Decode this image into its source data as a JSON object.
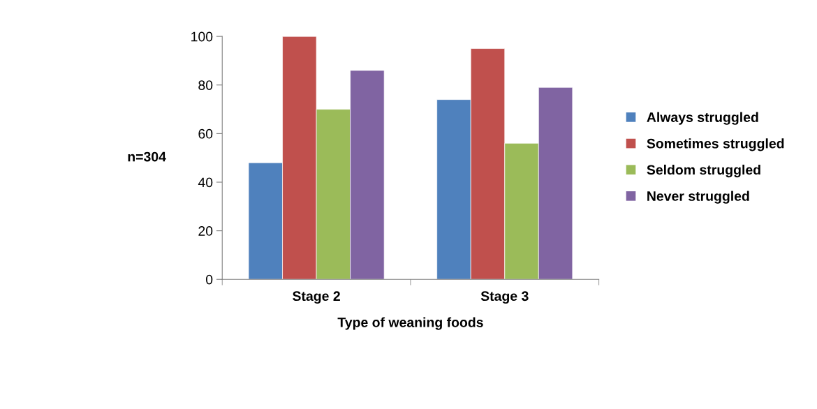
{
  "chart_data": {
    "type": "bar",
    "xlabel": "Type of weaning foods",
    "ylabel": "n=304",
    "categories": [
      "Stage 2",
      "Stage 3"
    ],
    "series": [
      {
        "name": "Always struggled",
        "color": "#4f81bd",
        "values": [
          48,
          74
        ]
      },
      {
        "name": "Sometimes struggled",
        "color": "#c0504d",
        "values": [
          100,
          95
        ]
      },
      {
        "name": "Seldom struggled",
        "color": "#9bbb59",
        "values": [
          70,
          56
        ]
      },
      {
        "name": "Never struggled",
        "color": "#8064a2",
        "values": [
          86,
          79
        ]
      }
    ],
    "ylim": [
      0,
      100
    ],
    "yticks": [
      0,
      20,
      40,
      60,
      80,
      100
    ],
    "grid": false,
    "legend": "right"
  }
}
